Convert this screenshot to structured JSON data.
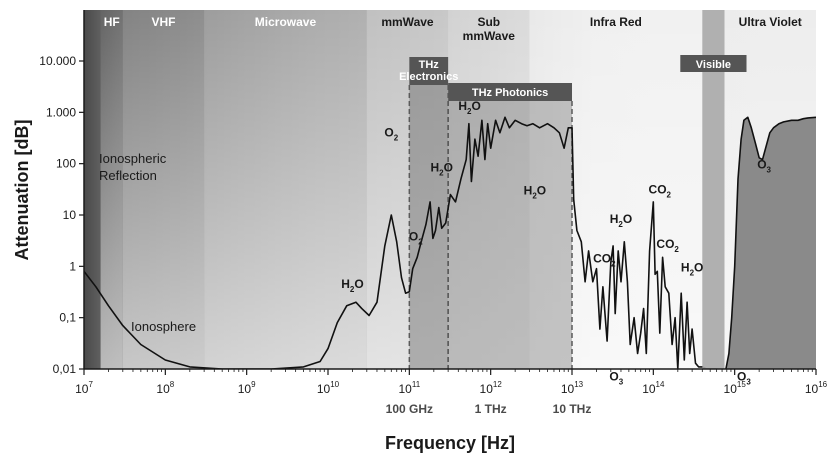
{
  "chart_data": {
    "type": "line",
    "title": "",
    "xlabel": "Frequency [Hz]",
    "ylabel": "Attenuation [dB]",
    "x_scale": "log",
    "y_scale": "log",
    "xlim": [
      10000000.0,
      1e+16
    ],
    "ylim": [
      0.01,
      10000
    ],
    "grid": false,
    "legend": "none",
    "x_ticks": [
      {
        "value": 10000000.0,
        "base": "10",
        "exp": "7"
      },
      {
        "value": 100000000.0,
        "base": "10",
        "exp": "8"
      },
      {
        "value": 1000000000.0,
        "base": "10",
        "exp": "9"
      },
      {
        "value": 10000000000.0,
        "base": "10",
        "exp": "10"
      },
      {
        "value": 100000000000.0,
        "base": "10",
        "exp": "11"
      },
      {
        "value": 1000000000000.0,
        "base": "10",
        "exp": "12"
      },
      {
        "value": 10000000000000.0,
        "base": "10",
        "exp": "13"
      },
      {
        "value": 100000000000000.0,
        "base": "10",
        "exp": "14"
      },
      {
        "value": 1000000000000000.0,
        "base": "10",
        "exp": "15"
      },
      {
        "value": 1e+16,
        "base": "10",
        "exp": "16"
      }
    ],
    "y_ticks": [
      {
        "value": 10000,
        "label": "10.000"
      },
      {
        "value": 1000,
        "label": "1.000"
      },
      {
        "value": 100,
        "label": "100"
      },
      {
        "value": 10,
        "label": "10"
      },
      {
        "value": 1,
        "label": "1"
      },
      {
        "value": 0.1,
        "label": "0,1"
      },
      {
        "value": 0.01,
        "label": "0,01"
      }
    ],
    "frequency_markers": [
      {
        "value": 100000000000.0,
        "label": "100 GHz"
      },
      {
        "value": 1000000000000.0,
        "label": "1 THz"
      },
      {
        "value": 10000000000000.0,
        "label": "10 THz"
      }
    ],
    "bands": [
      {
        "label": "HF",
        "start": 16000000.0,
        "end": 30000000.0,
        "shade": "#6a6a6a",
        "dark_text": false
      },
      {
        "label": "VHF",
        "start": 30000000.0,
        "end": 300000000.0,
        "shade": "#8a8a8a",
        "dark_text": false
      },
      {
        "label": "Microwave",
        "start": 300000000.0,
        "end": 30000000000.0,
        "shade": "#a6a6a6",
        "dark_text": false
      },
      {
        "label": "mmWave",
        "start": 30000000000.0,
        "end": 300000000000.0,
        "shade": "#c2c2c2",
        "dark_text": true
      },
      {
        "label": "Sub\nmmWave",
        "start": 300000000000.0,
        "end": 3000000000000.0,
        "shade": "#d6d6d6",
        "dark_text": true
      },
      {
        "label": "Infra Red",
        "start": 3000000000000.0,
        "end": 400000000000000.0,
        "shade": "#eeeeee",
        "dark_text": true
      },
      {
        "label": "Ultra Violet",
        "start": 750000000000000.0,
        "end": 1e+16,
        "shade": "#e6e6e6",
        "dark_text": true
      }
    ],
    "visible_band": {
      "label": "Visible",
      "start": 400000000000000.0,
      "end": 750000000000000.0
    },
    "windows": [
      {
        "label": "THz\nElectronics",
        "start": 100000000000.0,
        "end": 300000000000.0
      },
      {
        "label": "THz Photonics",
        "start": 300000000000.0,
        "end": 10000000000000.0
      }
    ],
    "region_labels": [
      "Ionospheric\nReflection",
      "Ionosphere"
    ],
    "annotations": [
      {
        "main": "H",
        "sub": "2",
        "tail": "O",
        "x": 20000000000.0,
        "y": 0.38
      },
      {
        "main": "O",
        "sub": "2",
        "tail": "",
        "x": 60000000000.0,
        "y": 340
      },
      {
        "main": "O",
        "sub": "2",
        "tail": "",
        "x": 120000000000.0,
        "y": 3.2
      },
      {
        "main": "H",
        "sub": "2",
        "tail": "O",
        "x": 250000000000.0,
        "y": 70
      },
      {
        "main": "H",
        "sub": "2",
        "tail": "O",
        "x": 550000000000.0,
        "y": 1100
      },
      {
        "main": "H",
        "sub": "2",
        "tail": "O",
        "x": 3500000000000.0,
        "y": 25
      },
      {
        "main": "H",
        "sub": "2",
        "tail": "O",
        "x": 40000000000000.0,
        "y": 7
      },
      {
        "main": "CO",
        "sub": "2",
        "tail": "",
        "x": 25000000000000.0,
        "y": 1.2
      },
      {
        "main": "CO",
        "sub": "2",
        "tail": "",
        "x": 120000000000000.0,
        "y": 26
      },
      {
        "main": "CO",
        "sub": "2",
        "tail": "",
        "x": 150000000000000.0,
        "y": 2.3
      },
      {
        "main": "H",
        "sub": "2",
        "tail": "O",
        "x": 300000000000000.0,
        "y": 0.8
      },
      {
        "main": "O",
        "sub": "3",
        "tail": "",
        "x": 35000000000000.0,
        "y": 0.006
      },
      {
        "main": "O",
        "sub": "3",
        "tail": "",
        "x": 1300000000000000.0,
        "y": 0.006
      },
      {
        "main": "O",
        "sub": "3",
        "tail": "",
        "x": 2300000000000000.0,
        "y": 80
      }
    ],
    "series": [
      {
        "x": [
          10000000.0,
          14000000.0,
          20000000.0,
          30000000.0,
          50000000.0,
          100000000.0,
          200000000.0,
          500000000.0,
          1000000000.0,
          2000000000.0,
          5000000000.0,
          8000000000.0,
          10000000000.0,
          13000000000.0,
          17000000000.0,
          22000000000.0,
          26000000000.0,
          32000000000.0,
          40000000000.0,
          50000000000.0,
          60000000000.0,
          70000000000.0,
          80000000000.0,
          90000000000.0,
          100000000000.0,
          110000000000.0,
          125000000000.0,
          140000000000.0,
          160000000000.0,
          180000000000.0,
          195000000000.0,
          210000000000.0,
          230000000000.0,
          250000000000.0,
          280000000000.0,
          320000000000.0,
          370000000000.0,
          430000000000.0,
          500000000000.0,
          540000000000.0,
          580000000000.0,
          640000000000.0,
          700000000000.0,
          780000000000.0,
          850000000000.0,
          920000000000.0,
          1000000000000.0,
          1150000000000.0,
          1300000000000.0,
          1500000000000.0,
          1700000000000.0,
          2000000000000.0,
          2400000000000.0,
          2800000000000.0,
          3300000000000.0,
          4000000000000.0,
          5000000000000.0,
          6000000000000.0,
          7000000000000.0,
          8000000000000.0,
          9000000000000.0,
          10000000000000.0,
          10500000000000.0,
          11500000000000.0,
          13000000000000.0,
          14500000000000.0,
          16000000000000.0,
          18000000000000.0,
          20000000000000.0,
          22000000000000.0,
          24000000000000.0,
          27000000000000.0,
          30000000000000.0,
          32000000000000.0,
          34000000000000.0,
          37000000000000.0,
          40000000000000.0,
          44000000000000.0,
          48000000000000.0,
          52000000000000.0,
          58000000000000.0,
          64000000000000.0,
          70000000000000.0,
          76000000000000.0,
          82000000000000.0,
          90000000000000.0,
          100000000000000.0,
          105000000000000.0,
          112000000000000.0,
          120000000000000.0,
          130000000000000.0,
          140000000000000.0,
          155000000000000.0,
          170000000000000.0,
          185000000000000.0,
          200000000000000.0,
          220000000000000.0,
          240000000000000.0,
          260000000000000.0,
          280000000000000.0,
          300000000000000.0,
          330000000000000.0,
          360000000000000.0,
          400000000000000.0,
          450000000000000.0,
          500000000000000.0,
          600000000000000.0,
          700000000000000.0,
          780000000000000.0,
          850000000000000.0,
          920000000000000.0,
          1000000000000000.0,
          1100000000000000.0,
          1200000000000000.0,
          1300000000000000.0,
          1450000000000000.0,
          1600000000000000.0,
          1800000000000000.0,
          2000000000000000.0,
          2200000000000000.0,
          2400000000000000.0,
          2700000000000000.0,
          3000000000000000.0,
          3500000000000000.0,
          4000000000000000.0,
          5000000000000000.0,
          6000000000000000.0,
          7000000000000000.0,
          8000000000000000.0,
          1e+16
        ],
        "y": [
          0.8,
          0.4,
          0.17,
          0.07,
          0.03,
          0.015,
          0.011,
          0.01,
          0.01,
          0.01,
          0.011,
          0.014,
          0.025,
          0.08,
          0.17,
          0.2,
          0.15,
          0.11,
          0.2,
          2.5,
          10,
          3,
          0.6,
          0.3,
          0.32,
          0.9,
          1.5,
          3,
          6.5,
          18,
          3.5,
          5,
          14,
          5.5,
          7,
          25,
          18,
          50,
          120,
          600,
          45,
          300,
          140,
          700,
          120,
          600,
          200,
          700,
          400,
          800,
          500,
          700,
          600,
          550,
          600,
          500,
          600,
          500,
          400,
          200,
          500,
          500,
          20,
          5,
          3,
          0.5,
          2,
          0.5,
          0.9,
          0.06,
          0.4,
          0.035,
          1.2,
          2.5,
          0.12,
          2,
          0.5,
          3,
          0.5,
          0.03,
          0.1,
          0.02,
          0.05,
          0.15,
          0.02,
          2,
          18,
          0.7,
          0.8,
          0.05,
          1.5,
          0.4,
          0.3,
          0.03,
          0.1,
          0.01,
          0.3,
          0.015,
          0.2,
          0.02,
          0.06,
          0.013,
          0.011,
          0.011,
          0.01,
          0.01,
          0.01,
          0.009,
          0.01,
          0.02,
          0.1,
          1,
          50,
          300,
          700,
          800,
          500,
          250,
          130,
          120,
          200,
          400,
          500,
          600,
          650,
          700,
          700,
          750,
          780,
          800
        ]
      }
    ]
  }
}
